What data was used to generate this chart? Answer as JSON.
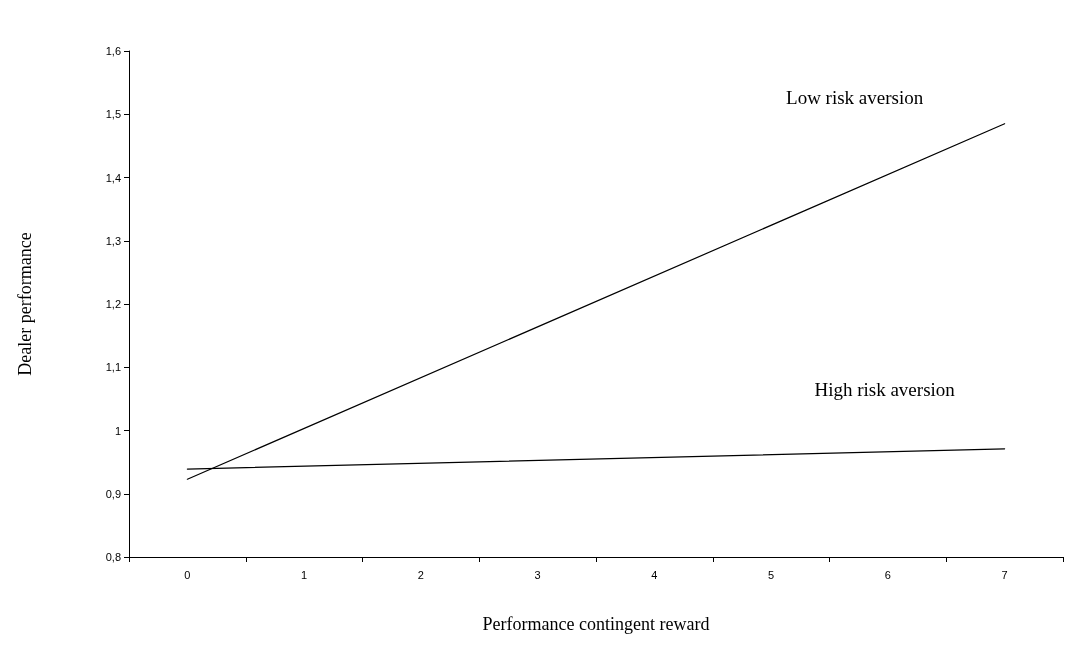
{
  "chart_data": {
    "type": "line",
    "xlabel": "Performance contingent reward",
    "ylabel": "Dealer performance",
    "categories": [
      "0",
      "1",
      "2",
      "3",
      "4",
      "5",
      "6",
      "7"
    ],
    "series": [
      {
        "name": "Low risk aversion",
        "color": "#000000",
        "values": [
          0.923,
          null,
          null,
          null,
          null,
          null,
          null,
          1.485
        ]
      },
      {
        "name": "High risk aversion",
        "color": "#000000",
        "values": [
          0.939,
          null,
          null,
          null,
          null,
          null,
          null,
          0.971
        ]
      }
    ],
    "ylim": [
      0.8,
      1.6
    ],
    "yticks": [
      {
        "value": 0.8,
        "label": "0,8"
      },
      {
        "value": 0.9,
        "label": "0,9"
      },
      1,
      {
        "value": 1.1,
        "label": "1,1"
      },
      {
        "value": 1.2,
        "label": "1,2"
      },
      {
        "value": 1.3,
        "label": "1,3"
      },
      {
        "value": 1.4,
        "label": "1,4"
      },
      {
        "value": 1.5,
        "label": "1,5"
      },
      {
        "value": 1.6,
        "label": "1,6"
      }
    ],
    "grid": false,
    "legend": false,
    "marker": "none",
    "line_style": "solid"
  }
}
